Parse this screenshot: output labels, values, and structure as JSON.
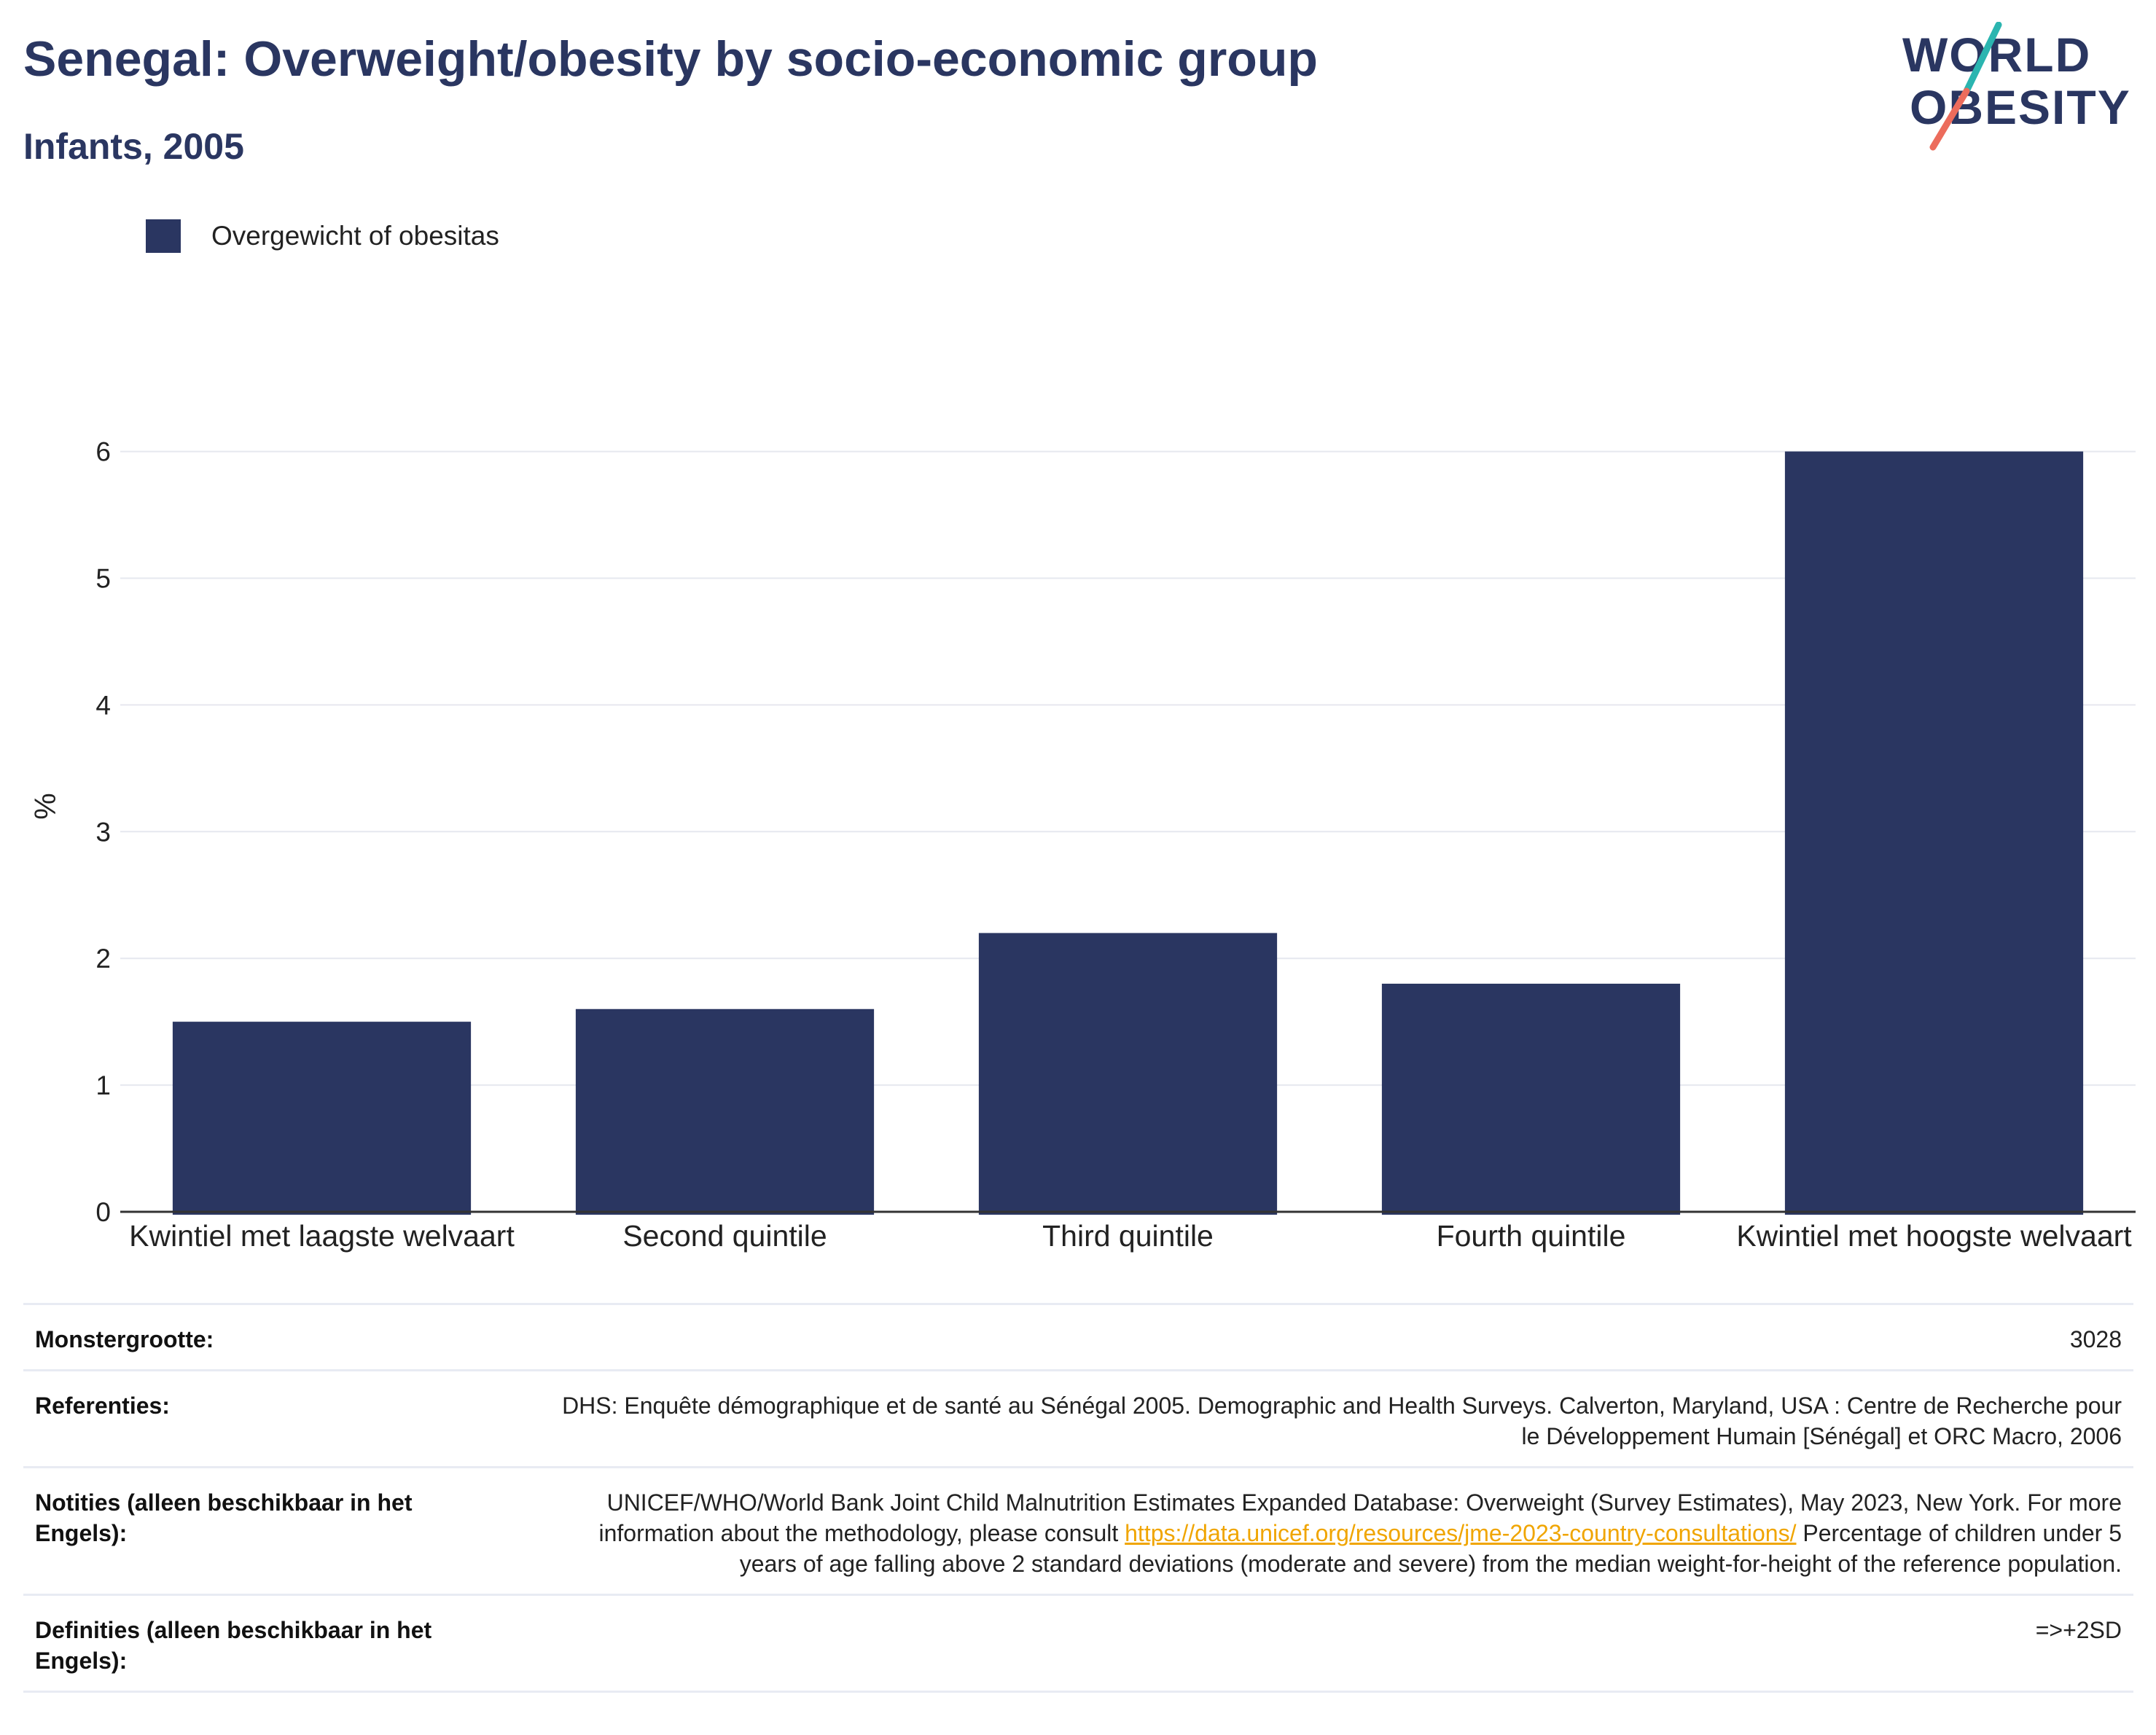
{
  "header": {
    "title": "Senegal: Overweight/obesity by socio-economic group",
    "subtitle": "Infants, 2005"
  },
  "logo": {
    "line1": "WORLD",
    "line2": "OBESITY",
    "colors": {
      "text": "#2a3661",
      "slash_top": "#2bb5b0",
      "slash_bottom": "#ec6c5c"
    }
  },
  "legend": {
    "label": "Overgewicht of obesitas",
    "color": "#2a3661"
  },
  "chart_data": {
    "type": "bar",
    "categories": [
      "Kwintiel met laagste welvaart",
      "Second quintile",
      "Third quintile",
      "Fourth quintile",
      "Kwintiel met hoogste welvaart"
    ],
    "series": [
      {
        "name": "Overgewicht of obesitas",
        "values": [
          1.5,
          1.6,
          2.2,
          1.8,
          6.0
        ],
        "color": "#2a3661"
      }
    ],
    "ylabel": "%",
    "ylim": [
      0,
      6.4
    ],
    "yticks": [
      0,
      1,
      2,
      3,
      4,
      5,
      6
    ],
    "grid": true,
    "legend_position": "top-left"
  },
  "info": {
    "rows": [
      {
        "label": "Monstergrootte:",
        "value": "3028"
      },
      {
        "label": "Referenties:",
        "value": "DHS: Enquête démographique et de santé au Sénégal 2005. Demographic and Health Surveys. Calverton, Maryland, USA : Centre de Recherche pour le Développement Humain [Sénégal] et ORC Macro, 2006"
      },
      {
        "label": "Notities (alleen beschikbaar in het Engels):",
        "value_before_link": "UNICEF/WHO/World Bank Joint Child Malnutrition Estimates Expanded Database: Overweight (Survey Estimates), May 2023, New York. For more information about the methodology, please consult ",
        "link": "https://data.unicef.org/resources/jme-2023-country-consultations/",
        "value_after_link": " Percentage of children under 5 years of age falling above 2 standard deviations (moderate and severe) from the median weight-for-height of the reference population."
      },
      {
        "label": "Definities (alleen beschikbaar in het Engels):",
        "value": "=>+2SD"
      }
    ]
  }
}
